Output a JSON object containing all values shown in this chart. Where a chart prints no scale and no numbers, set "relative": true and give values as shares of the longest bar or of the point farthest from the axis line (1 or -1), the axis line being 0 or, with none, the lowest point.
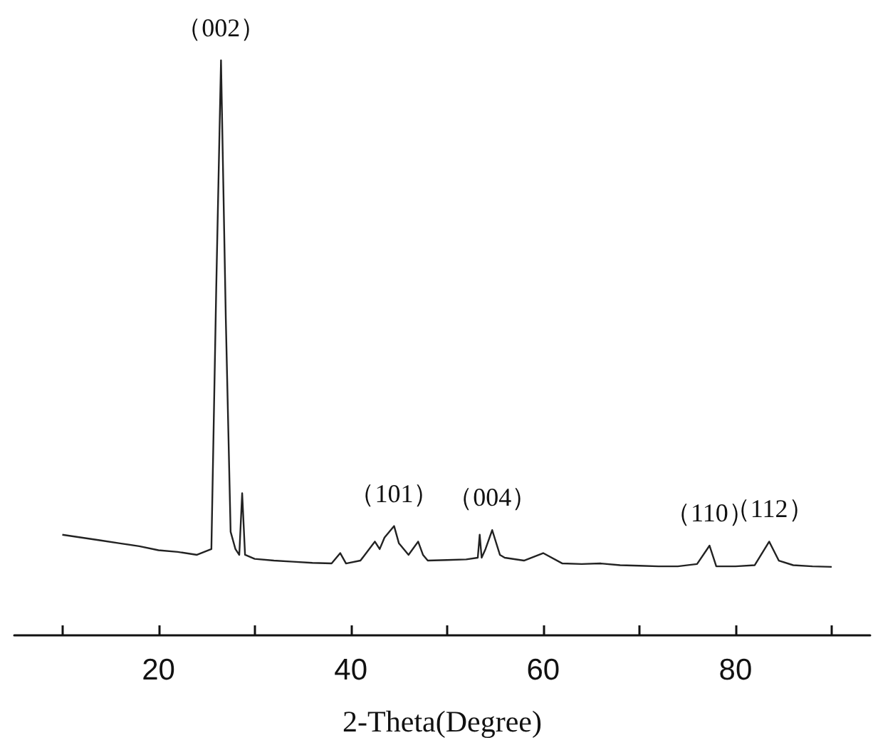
{
  "chart_data": {
    "type": "line",
    "relative": true,
    "xlabel": "2-Theta(Degree)",
    "x": [
      10,
      12,
      14,
      16,
      18,
      20,
      22,
      24,
      25.5,
      26,
      26.5,
      27,
      27.5,
      28,
      28.4,
      28.7,
      29,
      30,
      32,
      34,
      36,
      38,
      38.9,
      39.5,
      41,
      42.5,
      43,
      43.5,
      44.5,
      45,
      46,
      47,
      47.5,
      48,
      50,
      52,
      53.2,
      53.4,
      53.6,
      54,
      54.7,
      55.5,
      56,
      58,
      60,
      62,
      64,
      66,
      68,
      70,
      72,
      74,
      76,
      77.3,
      78,
      80,
      82,
      83.5,
      84.5,
      86,
      88,
      90
    ],
    "series": [
      {
        "color": "#222222",
        "values": [
          0.175,
          0.17,
          0.165,
          0.16,
          0.155,
          0.148,
          0.145,
          0.14,
          0.15,
          0.6,
          1.0,
          0.55,
          0.18,
          0.15,
          0.14,
          0.247,
          0.14,
          0.133,
          0.13,
          0.128,
          0.126,
          0.125,
          0.143,
          0.125,
          0.13,
          0.163,
          0.15,
          0.17,
          0.19,
          0.16,
          0.14,
          0.163,
          0.14,
          0.13,
          0.131,
          0.132,
          0.135,
          0.175,
          0.135,
          0.15,
          0.183,
          0.14,
          0.135,
          0.13,
          0.143,
          0.125,
          0.124,
          0.125,
          0.122,
          0.121,
          0.12,
          0.12,
          0.124,
          0.156,
          0.12,
          0.12,
          0.122,
          0.163,
          0.13,
          0.122,
          0.12,
          0.119
        ]
      }
    ],
    "xlim": [
      5,
      94
    ],
    "xticks": [
      {
        "value": 10,
        "label": null
      },
      20,
      {
        "value": 30,
        "label": null
      },
      40,
      {
        "value": 50,
        "label": null
      },
      60,
      {
        "value": 70,
        "label": null
      },
      80,
      {
        "value": 90,
        "label": null
      }
    ],
    "annotations": [
      {
        "text": "（002）",
        "x": 26.5,
        "y": 1.0
      },
      {
        "text": "（101）",
        "x": 44.5,
        "y": 0.19
      },
      {
        "text": "（004）",
        "x": 54.7,
        "y": 0.183
      },
      {
        "text": "（110）",
        "x": 77.3,
        "y": 0.156
      },
      {
        "text": "（112）",
        "x": 83.5,
        "y": 0.163
      }
    ]
  }
}
